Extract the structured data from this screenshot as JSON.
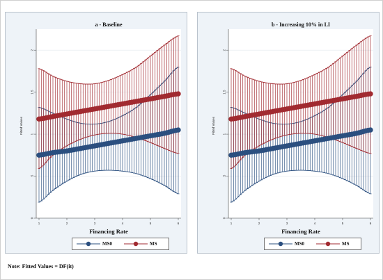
{
  "note": "Note: Fitted Values = DF(it)",
  "colors": {
    "ms0": "#2b4f7f",
    "ms": "#a12a30",
    "panel_bg": "#eef3f8"
  },
  "chart_data": [
    {
      "type": "line",
      "title": "a - Baseline",
      "xlabel": "Financing Rate",
      "ylabel": "Fitted Values",
      "xlim": [
        1,
        6
      ],
      "ylim": [
        0,
        2.2
      ],
      "x_ticks": [
        "1",
        "2",
        "3",
        "4",
        "5",
        "6"
      ],
      "y_ticks": [
        "0",
        ".5",
        "1",
        "1.5",
        "2"
      ],
      "grid": true,
      "legend_position": "bottom-center",
      "x": [
        1,
        1.5,
        2,
        2.5,
        3,
        3.5,
        4,
        4.5,
        5,
        5.5,
        6
      ],
      "series": [
        {
          "name": "MS0",
          "values": [
            0.75,
            0.78,
            0.8,
            0.83,
            0.86,
            0.89,
            0.92,
            0.95,
            0.98,
            1.01,
            1.05
          ],
          "lower": [
            0.19,
            0.33,
            0.44,
            0.52,
            0.56,
            0.57,
            0.56,
            0.53,
            0.47,
            0.39,
            0.29
          ],
          "upper": [
            1.32,
            1.25,
            1.18,
            1.13,
            1.12,
            1.15,
            1.22,
            1.32,
            1.47,
            1.63,
            1.8
          ]
        },
        {
          "name": "MS",
          "values": [
            1.18,
            1.21,
            1.24,
            1.27,
            1.3,
            1.33,
            1.36,
            1.39,
            1.42,
            1.45,
            1.48
          ],
          "lower": [
            0.59,
            0.75,
            0.86,
            0.94,
            0.99,
            1.01,
            1.0,
            0.96,
            0.9,
            0.83,
            0.77
          ],
          "upper": [
            1.78,
            1.69,
            1.63,
            1.6,
            1.6,
            1.64,
            1.71,
            1.8,
            1.93,
            2.06,
            2.17
          ]
        }
      ]
    },
    {
      "type": "line",
      "title": "b - Increasing 10% in LI",
      "xlabel": "Financing Rate",
      "ylabel": "Fitted Values",
      "xlim": [
        1,
        6
      ],
      "ylim": [
        0,
        2.2
      ],
      "x_ticks": [
        "1",
        "2",
        "3",
        "4",
        "5",
        "6"
      ],
      "y_ticks": [
        "0",
        ".5",
        "1",
        "1.5",
        "2"
      ],
      "grid": true,
      "legend_position": "bottom-center",
      "x": [
        1,
        1.5,
        2,
        2.5,
        3,
        3.5,
        4,
        4.5,
        5,
        5.5,
        6
      ],
      "series": [
        {
          "name": "MS0",
          "values": [
            0.75,
            0.78,
            0.8,
            0.83,
            0.86,
            0.89,
            0.92,
            0.95,
            0.98,
            1.01,
            1.05
          ],
          "lower": [
            0.19,
            0.33,
            0.44,
            0.52,
            0.56,
            0.57,
            0.56,
            0.53,
            0.47,
            0.39,
            0.29
          ],
          "upper": [
            1.32,
            1.25,
            1.18,
            1.13,
            1.12,
            1.15,
            1.22,
            1.32,
            1.47,
            1.63,
            1.8
          ]
        },
        {
          "name": "MS",
          "values": [
            1.18,
            1.21,
            1.24,
            1.27,
            1.3,
            1.33,
            1.36,
            1.39,
            1.42,
            1.45,
            1.48
          ],
          "lower": [
            0.59,
            0.75,
            0.86,
            0.94,
            0.99,
            1.01,
            1.0,
            0.96,
            0.9,
            0.83,
            0.77
          ],
          "upper": [
            1.78,
            1.69,
            1.63,
            1.6,
            1.6,
            1.64,
            1.71,
            1.8,
            1.93,
            2.06,
            2.17
          ]
        }
      ]
    }
  ]
}
